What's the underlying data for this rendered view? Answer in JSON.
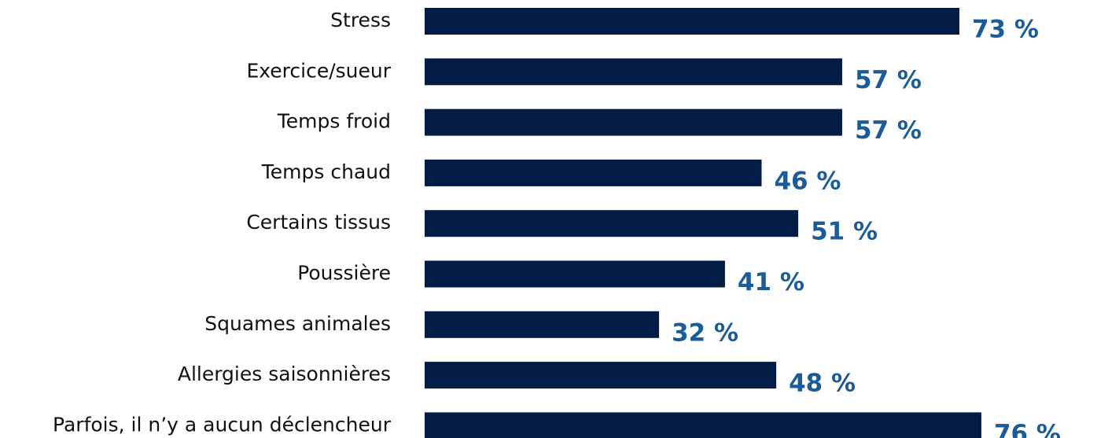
{
  "chart_data": {
    "type": "bar",
    "orientation": "horizontal",
    "categories": [
      "Stress",
      "Exercice/sueur",
      "Temps froid",
      "Temps chaud",
      "Certains tissus",
      "Poussière",
      "Squames animales",
      "Allergies saisonnières",
      "Parfois, il n’y a aucun déclencheur"
    ],
    "values": [
      73,
      57,
      57,
      46,
      51,
      41,
      32,
      48,
      76
    ],
    "value_labels": [
      "73 %",
      "57 %",
      "57 %",
      "46 %",
      "51 %",
      "41 %",
      "32 %",
      "48 %",
      "76 %"
    ],
    "color": "#021c45",
    "label_color": "#1b5c98"
  }
}
